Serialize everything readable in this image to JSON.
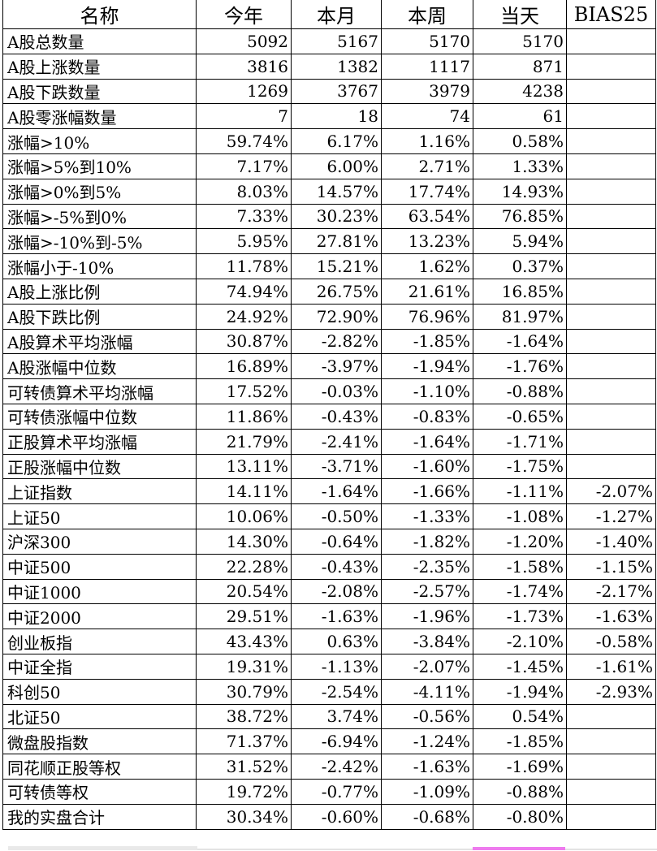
{
  "table": {
    "columns": [
      "名称",
      "今年",
      "本月",
      "本周",
      "当天",
      "BIAS25"
    ],
    "rows": [
      {
        "label": "A股总数量",
        "values": [
          "5092",
          "5167",
          "5170",
          "5170",
          ""
        ]
      },
      {
        "label": "A股上涨数量",
        "values": [
          "3816",
          "1382",
          "1117",
          "871",
          ""
        ]
      },
      {
        "label": "A股下跌数量",
        "values": [
          "1269",
          "3767",
          "3979",
          "4238",
          ""
        ]
      },
      {
        "label": "A股零涨幅数量",
        "values": [
          "7",
          "18",
          "74",
          "61",
          ""
        ]
      },
      {
        "label": "涨幅>10%",
        "values": [
          "59.74%",
          "6.17%",
          "1.16%",
          "0.58%",
          ""
        ]
      },
      {
        "label": "涨幅>5%到10%",
        "values": [
          "7.17%",
          "6.00%",
          "2.71%",
          "1.33%",
          ""
        ]
      },
      {
        "label": "涨幅>0%到5%",
        "values": [
          "8.03%",
          "14.57%",
          "17.74%",
          "14.93%",
          ""
        ]
      },
      {
        "label": "涨幅>-5%到0%",
        "values": [
          "7.33%",
          "30.23%",
          "63.54%",
          "76.85%",
          ""
        ]
      },
      {
        "label": "涨幅>-10%到-5%",
        "values": [
          "5.95%",
          "27.81%",
          "13.23%",
          "5.94%",
          ""
        ]
      },
      {
        "label": "涨幅小于-10%",
        "values": [
          "11.78%",
          "15.21%",
          "1.62%",
          "0.37%",
          ""
        ]
      },
      {
        "label": "A股上涨比例",
        "values": [
          "74.94%",
          "26.75%",
          "21.61%",
          "16.85%",
          ""
        ]
      },
      {
        "label": "A股下跌比例",
        "values": [
          "24.92%",
          "72.90%",
          "76.96%",
          "81.97%",
          ""
        ]
      },
      {
        "label": "A股算术平均涨幅",
        "values": [
          "30.87%",
          "-2.82%",
          "-1.85%",
          "-1.64%",
          ""
        ]
      },
      {
        "label": "A股涨幅中位数",
        "values": [
          "16.89%",
          "-3.97%",
          "-1.94%",
          "-1.76%",
          ""
        ]
      },
      {
        "label": "可转债算术平均涨幅",
        "values": [
          "17.52%",
          "-0.03%",
          "-1.10%",
          "-0.88%",
          ""
        ]
      },
      {
        "label": "可转债涨幅中位数",
        "values": [
          "11.86%",
          "-0.43%",
          "-0.83%",
          "-0.65%",
          ""
        ]
      },
      {
        "label": "正股算术平均涨幅",
        "values": [
          "21.79%",
          "-2.41%",
          "-1.64%",
          "-1.71%",
          ""
        ]
      },
      {
        "label": "正股涨幅中位数",
        "values": [
          "13.11%",
          "-3.71%",
          "-1.60%",
          "-1.75%",
          ""
        ]
      },
      {
        "label": "上证指数",
        "values": [
          "14.11%",
          "-1.64%",
          "-1.66%",
          "-1.11%",
          "-2.07%"
        ]
      },
      {
        "label": "上证50",
        "values": [
          "10.06%",
          "-0.50%",
          "-1.33%",
          "-1.08%",
          "-1.27%"
        ]
      },
      {
        "label": "沪深300",
        "values": [
          "14.30%",
          "-0.64%",
          "-1.82%",
          "-1.20%",
          "-1.40%"
        ]
      },
      {
        "label": "中证500",
        "values": [
          "22.28%",
          "-0.43%",
          "-2.35%",
          "-1.58%",
          "-1.15%"
        ]
      },
      {
        "label": "中证1000",
        "values": [
          "20.54%",
          "-2.08%",
          "-2.57%",
          "-1.74%",
          "-2.17%"
        ]
      },
      {
        "label": "中证2000",
        "values": [
          "29.51%",
          "-1.63%",
          "-1.96%",
          "-1.73%",
          "-1.63%"
        ]
      },
      {
        "label": "创业板指",
        "values": [
          "43.43%",
          "0.63%",
          "-3.84%",
          "-2.10%",
          "-0.58%"
        ]
      },
      {
        "label": "中证全指",
        "values": [
          "19.31%",
          "-1.13%",
          "-2.07%",
          "-1.45%",
          "-1.61%"
        ]
      },
      {
        "label": "科创50",
        "values": [
          "30.79%",
          "-2.54%",
          "-4.11%",
          "-1.94%",
          "-2.93%"
        ]
      },
      {
        "label": "北证50",
        "values": [
          "38.72%",
          "3.74%",
          "-0.56%",
          "0.54%",
          ""
        ]
      },
      {
        "label": "微盘股指数",
        "values": [
          "71.37%",
          "-6.94%",
          "-1.24%",
          "-1.85%",
          ""
        ]
      },
      {
        "label": "同花顺正股等权",
        "values": [
          "31.52%",
          "-2.42%",
          "-1.63%",
          "-1.69%",
          ""
        ]
      },
      {
        "label": "可转债等权",
        "values": [
          "19.72%",
          "-0.77%",
          "-1.09%",
          "-0.88%",
          ""
        ]
      },
      {
        "label": "我的实盘合计",
        "values": [
          "30.34%",
          "-0.60%",
          "-0.68%",
          "-0.80%",
          ""
        ]
      }
    ]
  },
  "colors": {
    "grid": "#000000",
    "pink_scroll_segment": "#ee7bee",
    "gray_scroll_bar": "#e9e9e9",
    "gray_track_line": "#e3e3e3"
  }
}
